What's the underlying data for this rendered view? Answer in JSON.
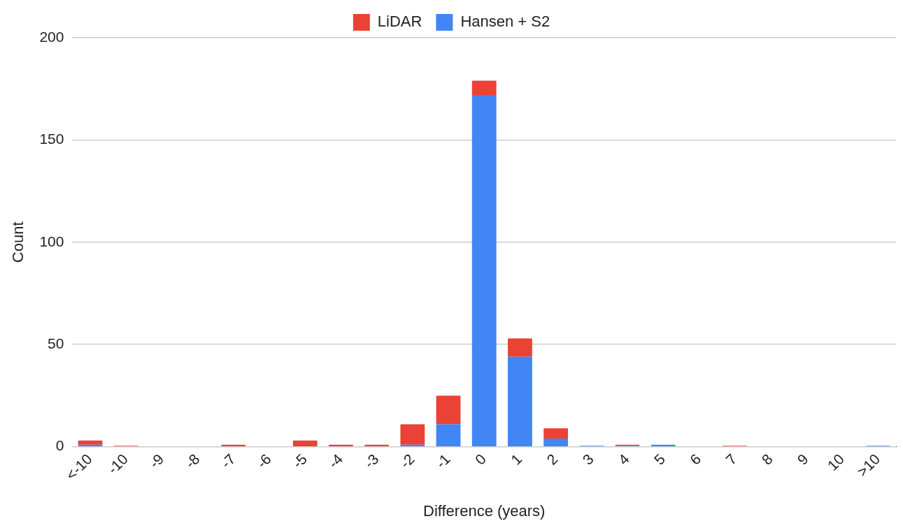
{
  "chart_data": {
    "type": "bar",
    "stacked": true,
    "xlabel": "Difference (years)",
    "ylabel": "Count",
    "categories": [
      "<-10",
      "-10",
      "-9",
      "-8",
      "-7",
      "-6",
      "-5",
      "-4",
      "-3",
      "-2",
      "-1",
      "0",
      "1",
      "2",
      "3",
      "4",
      "5",
      "6",
      "7",
      "8",
      "9",
      "10",
      ">10"
    ],
    "series": [
      {
        "name": "Hansen + S2",
        "color": "#4285f4",
        "values": [
          1,
          0,
          0,
          0,
          0,
          0,
          0,
          0,
          0,
          1,
          11,
          172,
          44,
          4,
          0.5,
          0.5,
          1,
          0,
          0,
          0,
          0,
          0,
          0.5
        ]
      },
      {
        "name": "LiDAR",
        "color": "#ea4335",
        "values": [
          2,
          0.5,
          0,
          0,
          1,
          0,
          3,
          1,
          1,
          10,
          14,
          7,
          9,
          5,
          0,
          0.5,
          0,
          0,
          0.5,
          0,
          0,
          0,
          0
        ]
      }
    ],
    "ylim": [
      0,
      200
    ],
    "yticks": [
      0,
      50,
      100,
      150,
      200
    ],
    "grid": "y",
    "legend": "top"
  }
}
